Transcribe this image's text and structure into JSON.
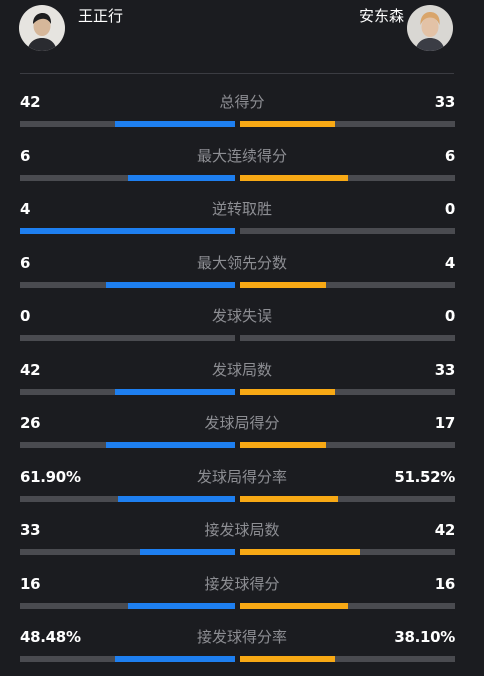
{
  "players": {
    "left": {
      "name": "王正行",
      "avatar_icon": "player-portrait-icon"
    },
    "right": {
      "name": "安东森",
      "avatar_icon": "player-portrait-icon"
    }
  },
  "colors": {
    "left_fill": "#1e7ff0",
    "right_fill": "#f8a915",
    "track": "#4a4b50",
    "background": "#1b1c20"
  },
  "stats": [
    {
      "label": "总得分",
      "left": "42",
      "right": "33",
      "left_share": 0.56,
      "right_share": 0.44
    },
    {
      "label": "最大连续得分",
      "left": "6",
      "right": "6",
      "left_share": 0.5,
      "right_share": 0.5
    },
    {
      "label": "逆转取胜",
      "left": "4",
      "right": "0",
      "left_share": 1.0,
      "right_share": 0.0
    },
    {
      "label": "最大领先分数",
      "left": "6",
      "right": "4",
      "left_share": 0.6,
      "right_share": 0.4
    },
    {
      "label": "发球失误",
      "left": "0",
      "right": "0",
      "left_share": 0.0,
      "right_share": 0.0
    },
    {
      "label": "发球局数",
      "left": "42",
      "right": "33",
      "left_share": 0.56,
      "right_share": 0.44
    },
    {
      "label": "发球局得分",
      "left": "26",
      "right": "17",
      "left_share": 0.6,
      "right_share": 0.4
    },
    {
      "label": "发球局得分率",
      "left": "61.90%",
      "right": "51.52%",
      "left_share": 0.546,
      "right_share": 0.454
    },
    {
      "label": "接发球局数",
      "left": "33",
      "right": "42",
      "left_share": 0.44,
      "right_share": 0.56
    },
    {
      "label": "接发球得分",
      "left": "16",
      "right": "16",
      "left_share": 0.5,
      "right_share": 0.5
    },
    {
      "label": "接发球得分率",
      "left": "48.48%",
      "right": "38.10%",
      "left_share": 0.56,
      "right_share": 0.44
    }
  ]
}
